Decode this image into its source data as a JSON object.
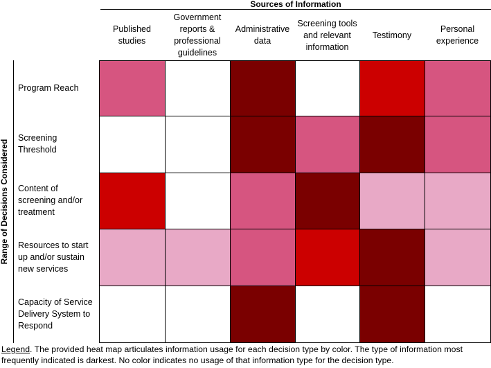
{
  "chart_data": {
    "type": "heatmap",
    "title": "Sources of Information",
    "ylabel": "Range of Decisions Considered",
    "columns": [
      "Published\nstudies",
      "Government\nreports &\nprofessional\nguidelines",
      "Administrative\ndata",
      "Screening tools\nand relevant\ninformation",
      "Testimony",
      "Personal\nexperience"
    ],
    "rows": [
      "Program Reach",
      "Screening\nThreshold",
      "Content of\nscreening and/or\ntreatment",
      "Resources to start\nup and/or sustain\nnew services",
      "Capacity of Service\nDelivery System to\nRespond"
    ],
    "levels": {
      "0": "none",
      "1": "light",
      "2": "medium",
      "3": "high",
      "4": "highest"
    },
    "colors": {
      "0": "#ffffff",
      "1": "#e8a9c6",
      "2": "#d65580",
      "3": "#cc0000",
      "4": "#7a0000"
    },
    "values": [
      [
        2,
        0,
        4,
        0,
        3,
        2
      ],
      [
        0,
        0,
        4,
        2,
        4,
        2
      ],
      [
        3,
        0,
        2,
        4,
        1,
        1
      ],
      [
        1,
        1,
        2,
        3,
        4,
        1
      ],
      [
        0,
        0,
        4,
        0,
        4,
        0
      ]
    ]
  },
  "legend": {
    "label": "Legend",
    "text": ". The provided heat map articulates information usage for each decision type by color. The type of information most frequently indicated is darkest. No color indicates no usage of that information type for the decision type."
  }
}
